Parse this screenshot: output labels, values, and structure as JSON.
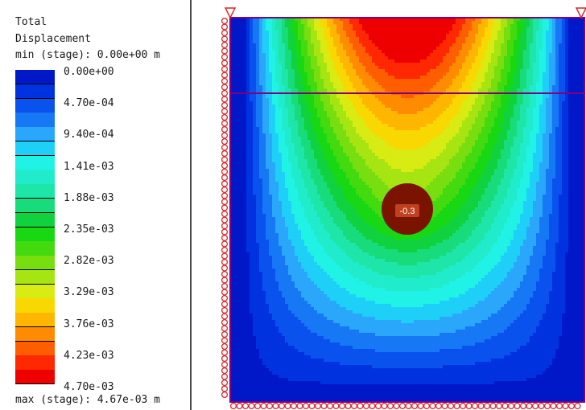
{
  "legend": {
    "title_line1": "Total",
    "title_line2": "Displacement",
    "min_text": "min (stage): 0.00e+00 m",
    "max_text": "max (stage): 4.67e-03 m",
    "tick_labels": [
      "0.00e+00",
      "4.70e-04",
      "9.40e-04",
      "1.41e-03",
      "1.88e-03",
      "2.35e-03",
      "2.82e-03",
      "3.29e-03",
      "3.76e-03",
      "4.23e-03",
      "4.70e-03"
    ],
    "colors": [
      "#0018c8",
      "#0032e0",
      "#0a52ee",
      "#1678f4",
      "#2aa6fa",
      "#1ed0f8",
      "#20f2e6",
      "#20eccc",
      "#1ee6a8",
      "#18dc7c",
      "#10d23e",
      "#18d814",
      "#44da10",
      "#78de10",
      "#a6e412",
      "#d8ec14",
      "#f8d800",
      "#ffb600",
      "#ff8c00",
      "#ff5e00",
      "#ff2800",
      "#ee0000"
    ]
  },
  "model": {
    "point_label": "-0.3",
    "outline_color": "#800080",
    "support_color": "#dd2222"
  }
}
